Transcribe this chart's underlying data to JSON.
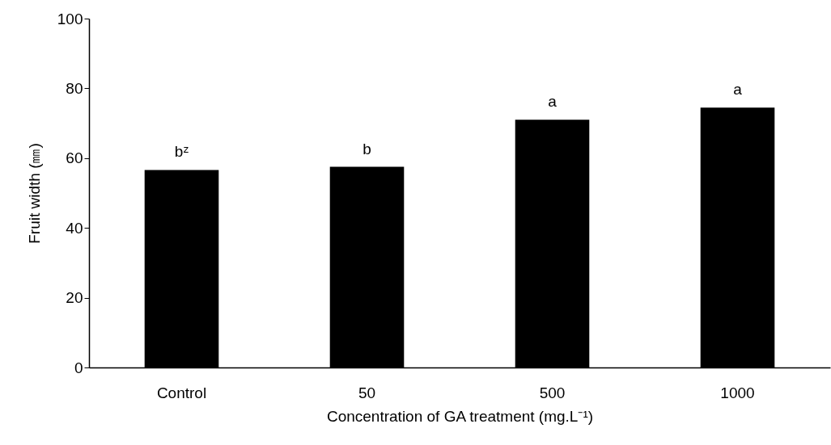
{
  "chart_data": {
    "type": "bar",
    "xlabel": "Concentration of GA treatment (mg.L⁻¹)",
    "ylabel": "Fruit width (㎜)",
    "categories": [
      "Control",
      "50",
      "500",
      "1000"
    ],
    "series": [
      {
        "color": "#000000",
        "values": [
          56.6,
          57.5,
          71.0,
          74.5
        ]
      }
    ],
    "ylim": [
      0,
      100
    ],
    "yticks": [
      0,
      20,
      40,
      60,
      80,
      100
    ],
    "grid": false,
    "legend": false,
    "annotations": [
      {
        "text": "bᶻ",
        "x": "Control",
        "y": 56.6
      },
      {
        "text": "b",
        "x": "50",
        "y": 57.5
      },
      {
        "text": "a",
        "x": "500",
        "y": 71.0
      },
      {
        "text": "a",
        "x": "1000",
        "y": 74.5
      }
    ]
  }
}
